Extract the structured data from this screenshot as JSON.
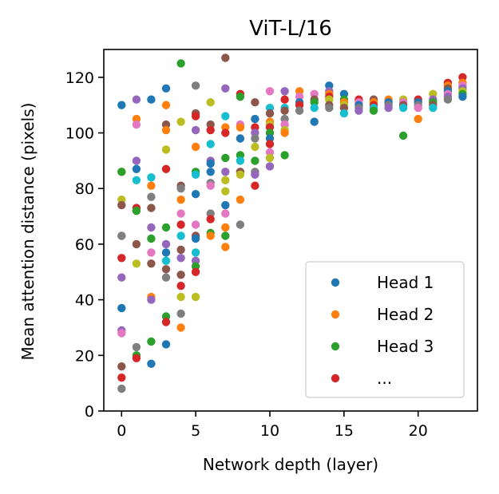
{
  "chart_data": {
    "type": "scatter",
    "title": "ViT-L/16",
    "xlabel": "Network depth (layer)",
    "ylabel": "Mean attention distance (pixels)",
    "xlim": [
      -1.2,
      24.0
    ],
    "ylim": [
      0,
      130
    ],
    "xticks": [
      0,
      5,
      10,
      15,
      20
    ],
    "yticks": [
      0,
      20,
      40,
      60,
      80,
      100,
      120
    ],
    "grid": false,
    "legend_position": "bottom-right",
    "legend": [
      {
        "label": "Head 1",
        "color": "#1f77b4"
      },
      {
        "label": "Head 2",
        "color": "#ff7f0e"
      },
      {
        "label": "Head 3",
        "color": "#2ca02c"
      },
      {
        "label": "...",
        "color": "#d62728"
      }
    ],
    "colors": [
      "#1f77b4",
      "#ff7f0e",
      "#2ca02c",
      "#d62728",
      "#9467bd",
      "#8c564b",
      "#e377c2",
      "#7f7f7f",
      "#bcbd22",
      "#17becf"
    ],
    "points": [
      [
        0,
        110,
        0
      ],
      [
        0,
        37,
        0
      ],
      [
        0,
        86,
        1
      ],
      [
        0,
        86,
        2
      ],
      [
        0,
        76,
        8
      ],
      [
        0,
        74,
        5
      ],
      [
        0,
        63,
        6
      ],
      [
        0,
        63,
        7
      ],
      [
        0,
        55,
        3
      ],
      [
        0,
        48,
        4
      ],
      [
        0,
        29,
        4
      ],
      [
        0,
        28,
        6
      ],
      [
        0,
        16,
        5
      ],
      [
        0,
        12,
        3
      ],
      [
        0,
        8,
        7
      ],
      [
        1,
        112,
        4
      ],
      [
        1,
        105,
        1
      ],
      [
        1,
        103,
        6
      ],
      [
        1,
        90,
        4
      ],
      [
        1,
        87,
        0
      ],
      [
        1,
        83,
        9
      ],
      [
        1,
        73,
        3
      ],
      [
        1,
        72,
        5
      ],
      [
        1,
        72,
        2
      ],
      [
        1,
        60,
        5
      ],
      [
        1,
        53,
        8
      ],
      [
        1,
        23,
        7
      ],
      [
        1,
        20,
        2
      ],
      [
        1,
        19,
        3
      ],
      [
        2,
        112,
        0
      ],
      [
        2,
        84,
        9
      ],
      [
        2,
        81,
        1
      ],
      [
        2,
        77,
        7
      ],
      [
        2,
        73,
        5
      ],
      [
        2,
        66,
        4
      ],
      [
        2,
        62,
        2
      ],
      [
        2,
        57,
        6
      ],
      [
        2,
        53,
        5
      ],
      [
        2,
        41,
        1
      ],
      [
        2,
        40,
        4
      ],
      [
        2,
        25,
        2
      ],
      [
        2,
        17,
        0
      ],
      [
        3,
        116,
        0
      ],
      [
        3,
        110,
        1
      ],
      [
        3,
        103,
        5
      ],
      [
        3,
        101,
        1
      ],
      [
        3,
        94,
        8
      ],
      [
        3,
        87,
        3
      ],
      [
        3,
        66,
        2
      ],
      [
        3,
        60,
        4
      ],
      [
        3,
        57,
        0
      ],
      [
        3,
        54,
        9
      ],
      [
        3,
        51,
        5
      ],
      [
        3,
        48,
        7
      ],
      [
        3,
        34,
        2
      ],
      [
        3,
        32,
        3
      ],
      [
        3,
        24,
        0
      ],
      [
        4,
        125,
        2
      ],
      [
        4,
        104,
        8
      ],
      [
        4,
        81,
        5
      ],
      [
        4,
        80,
        7
      ],
      [
        4,
        76,
        1
      ],
      [
        4,
        71,
        6
      ],
      [
        4,
        67,
        3
      ],
      [
        4,
        63,
        9
      ],
      [
        4,
        58,
        5
      ],
      [
        4,
        55,
        4
      ],
      [
        4,
        49,
        5
      ],
      [
        4,
        45,
        3
      ],
      [
        4,
        41,
        8
      ],
      [
        4,
        35,
        7
      ],
      [
        4,
        30,
        1
      ],
      [
        5,
        117,
        7
      ],
      [
        5,
        107,
        5
      ],
      [
        5,
        106,
        3
      ],
      [
        5,
        101,
        4
      ],
      [
        5,
        95,
        1
      ],
      [
        5,
        86,
        2
      ],
      [
        5,
        85,
        9
      ],
      [
        5,
        78,
        0
      ],
      [
        5,
        67,
        6
      ],
      [
        5,
        63,
        5
      ],
      [
        5,
        62,
        0
      ],
      [
        5,
        57,
        9
      ],
      [
        5,
        54,
        4
      ],
      [
        5,
        52,
        2
      ],
      [
        5,
        50,
        3
      ],
      [
        5,
        41,
        8
      ],
      [
        6,
        111,
        8
      ],
      [
        6,
        103,
        5
      ],
      [
        6,
        101,
        3
      ],
      [
        6,
        96,
        9
      ],
      [
        6,
        90,
        4
      ],
      [
        6,
        89,
        0
      ],
      [
        6,
        86,
        0
      ],
      [
        6,
        82,
        7
      ],
      [
        6,
        81,
        6
      ],
      [
        6,
        71,
        7
      ],
      [
        6,
        69,
        3
      ],
      [
        6,
        64,
        2
      ],
      [
        6,
        63,
        1
      ],
      [
        7,
        127,
        5
      ],
      [
        7,
        116,
        4
      ],
      [
        7,
        106,
        9
      ],
      [
        7,
        102,
        1
      ],
      [
        7,
        100,
        3
      ],
      [
        7,
        91,
        2
      ],
      [
        7,
        86,
        4
      ],
      [
        7,
        83,
        8
      ],
      [
        7,
        79,
        8
      ],
      [
        7,
        74,
        0
      ],
      [
        7,
        71,
        6
      ],
      [
        7,
        66,
        1
      ],
      [
        7,
        63,
        2
      ],
      [
        7,
        59,
        1
      ],
      [
        8,
        114,
        3
      ],
      [
        8,
        113,
        2
      ],
      [
        8,
        103,
        6
      ],
      [
        8,
        102,
        1
      ],
      [
        8,
        98,
        0
      ],
      [
        8,
        92,
        2
      ],
      [
        8,
        90,
        9
      ],
      [
        8,
        86,
        5
      ],
      [
        8,
        85,
        8
      ],
      [
        8,
        76,
        1
      ],
      [
        8,
        67,
        7
      ],
      [
        9,
        111,
        5
      ],
      [
        9,
        105,
        0
      ],
      [
        9,
        102,
        3
      ],
      [
        9,
        100,
        4
      ],
      [
        9,
        98,
        7
      ],
      [
        9,
        95,
        8
      ],
      [
        9,
        90,
        2
      ],
      [
        9,
        86,
        7
      ],
      [
        9,
        85,
        4
      ],
      [
        9,
        81,
        3
      ],
      [
        10,
        115,
        6
      ],
      [
        10,
        109,
        9
      ],
      [
        10,
        107,
        5
      ],
      [
        10,
        104,
        1
      ],
      [
        10,
        103,
        8
      ],
      [
        10,
        102,
        3
      ],
      [
        10,
        100,
        2
      ],
      [
        10,
        98,
        0
      ],
      [
        10,
        96,
        3
      ],
      [
        10,
        93,
        6
      ],
      [
        10,
        91,
        8
      ],
      [
        10,
        88,
        4
      ],
      [
        11,
        115,
        4
      ],
      [
        11,
        112,
        3
      ],
      [
        11,
        109,
        9
      ],
      [
        11,
        108,
        5
      ],
      [
        11,
        105,
        7
      ],
      [
        11,
        103,
        6
      ],
      [
        11,
        101,
        8
      ],
      [
        11,
        100,
        1
      ],
      [
        11,
        92,
        2
      ],
      [
        12,
        115,
        1
      ],
      [
        12,
        113,
        6
      ],
      [
        12,
        111,
        0
      ],
      [
        12,
        110,
        9
      ],
      [
        12,
        110,
        3
      ],
      [
        12,
        108,
        7
      ],
      [
        13,
        114,
        6
      ],
      [
        13,
        112,
        5
      ],
      [
        13,
        111,
        2
      ],
      [
        13,
        109,
        9
      ],
      [
        13,
        104,
        0
      ],
      [
        14,
        117,
        0
      ],
      [
        14,
        115,
        4
      ],
      [
        14,
        114,
        1
      ],
      [
        14,
        113,
        3
      ],
      [
        14,
        112,
        8
      ],
      [
        14,
        110,
        5
      ],
      [
        14,
        109,
        7
      ],
      [
        15,
        114,
        0
      ],
      [
        15,
        112,
        2
      ],
      [
        15,
        111,
        1
      ],
      [
        15,
        110,
        8
      ],
      [
        15,
        109,
        5
      ],
      [
        15,
        107,
        9
      ],
      [
        16,
        112,
        3
      ],
      [
        16,
        111,
        6
      ],
      [
        16,
        110,
        0
      ],
      [
        16,
        109,
        7
      ],
      [
        16,
        108,
        4
      ],
      [
        17,
        112,
        5
      ],
      [
        17,
        111,
        1
      ],
      [
        17,
        110,
        3
      ],
      [
        17,
        109,
        9
      ],
      [
        17,
        108,
        2
      ],
      [
        18,
        112,
        1
      ],
      [
        18,
        111,
        0
      ],
      [
        18,
        110,
        7
      ],
      [
        18,
        109,
        4
      ],
      [
        19,
        112,
        8
      ],
      [
        19,
        111,
        6
      ],
      [
        19,
        110,
        5
      ],
      [
        19,
        109,
        9
      ],
      [
        19,
        99,
        2
      ],
      [
        20,
        112,
        3
      ],
      [
        20,
        111,
        0
      ],
      [
        20,
        110,
        7
      ],
      [
        20,
        109,
        6
      ],
      [
        20,
        105,
        1
      ],
      [
        21,
        114,
        8
      ],
      [
        21,
        112,
        4
      ],
      [
        21,
        111,
        2
      ],
      [
        21,
        110,
        5
      ],
      [
        21,
        109,
        9
      ],
      [
        22,
        118,
        3
      ],
      [
        22,
        117,
        1
      ],
      [
        22,
        116,
        5
      ],
      [
        22,
        115,
        0
      ],
      [
        22,
        114,
        6
      ],
      [
        22,
        113,
        4
      ],
      [
        22,
        112,
        7
      ],
      [
        23,
        120,
        3
      ],
      [
        23,
        118,
        1
      ],
      [
        23,
        117,
        6
      ],
      [
        23,
        116,
        4
      ],
      [
        23,
        115,
        8
      ],
      [
        23,
        114,
        2
      ],
      [
        23,
        113,
        0
      ]
    ]
  }
}
